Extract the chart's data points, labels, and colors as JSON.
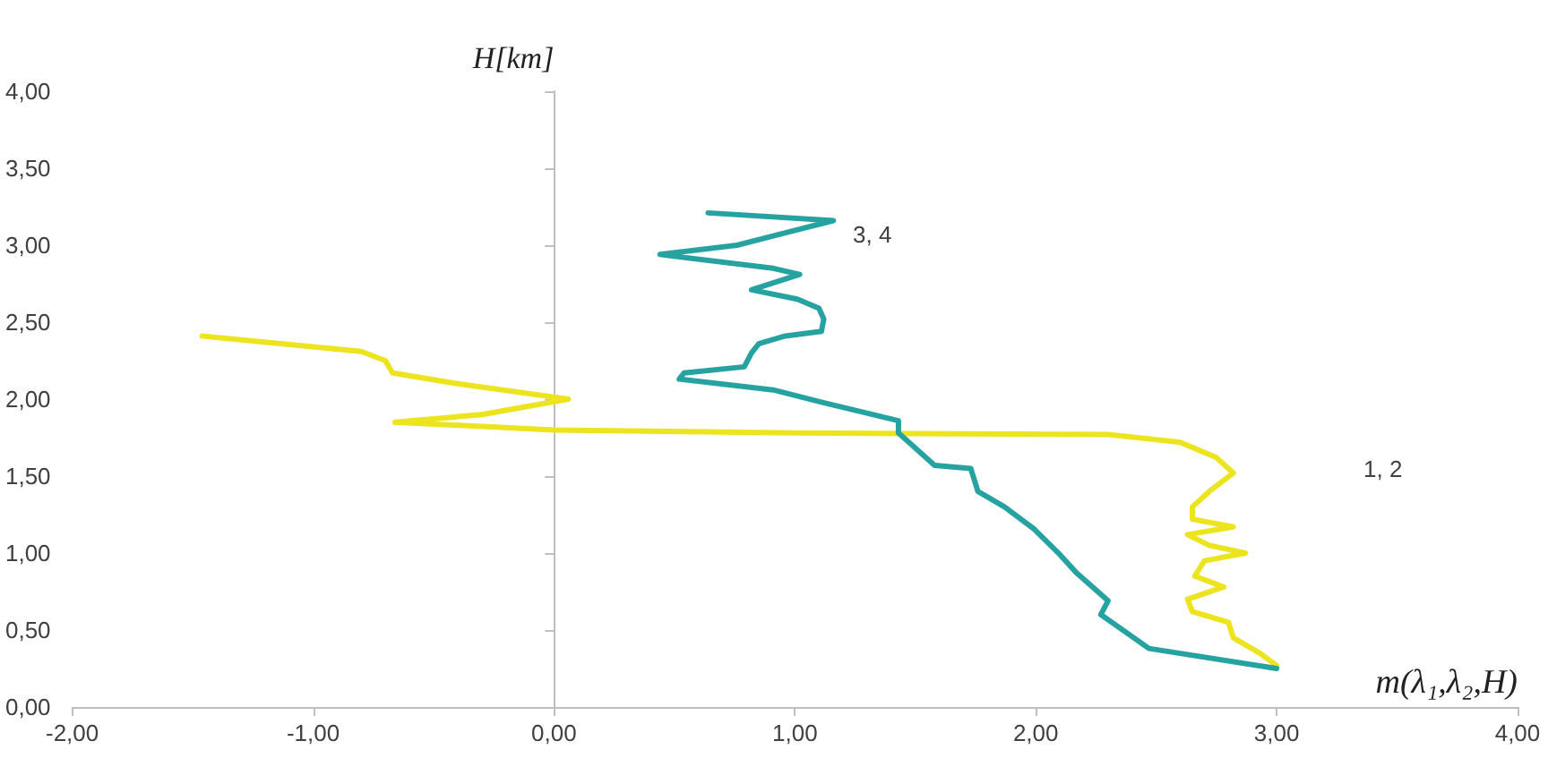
{
  "chart_data": {
    "type": "line",
    "xlabel": "m(λ₁,λ₂,H)",
    "ylabel": "H[km]",
    "xlim": [
      -2,
      4
    ],
    "xticks": [
      {
        "value": -2,
        "label": "-2,00"
      },
      {
        "value": -1,
        "label": "-1,00"
      },
      {
        "value": 0,
        "label": "0,00"
      },
      {
        "value": 1,
        "label": "1,00"
      },
      {
        "value": 2,
        "label": "2,00"
      },
      {
        "value": 3,
        "label": "3,00"
      },
      {
        "value": 4,
        "label": "4,00"
      }
    ],
    "ylim": [
      0,
      4
    ],
    "yticks": [
      {
        "value": 0,
        "label": "0,00"
      },
      {
        "value": 0.5,
        "label": "0,50"
      },
      {
        "value": 1,
        "label": "1,00"
      },
      {
        "value": 1.5,
        "label": "1,50"
      },
      {
        "value": 2,
        "label": "2,00"
      },
      {
        "value": 2.5,
        "label": "2,50"
      },
      {
        "value": 3,
        "label": "3,00"
      },
      {
        "value": 3.5,
        "label": "3,50"
      },
      {
        "value": 4,
        "label": "4,00"
      }
    ],
    "series": [
      {
        "color": "#ece41e",
        "x": [
          3.0,
          2.93,
          2.82,
          2.8,
          2.65,
          2.63,
          2.78,
          2.66,
          2.7,
          2.87,
          2.72,
          2.63,
          2.82,
          2.65,
          2.65,
          2.72,
          2.82,
          2.75,
          2.6,
          2.3,
          1.0,
          0,
          -0.66,
          -0.3,
          0.06,
          -0.4,
          -0.67,
          -0.7,
          -0.8,
          -1.46
        ],
        "values": [
          0.27,
          0.35,
          0.45,
          0.55,
          0.62,
          0.7,
          0.78,
          0.85,
          0.95,
          1.0,
          1.05,
          1.12,
          1.17,
          1.22,
          1.3,
          1.4,
          1.52,
          1.62,
          1.72,
          1.77,
          1.78,
          1.8,
          1.85,
          1.9,
          2.0,
          2.1,
          2.17,
          2.25,
          2.31,
          2.41
        ]
      },
      {
        "color": "#26a3a0",
        "x": [
          3.0,
          2.47,
          2.27,
          2.3,
          2.17,
          2.1,
          1.99,
          1.87,
          1.76,
          1.73,
          1.58,
          1.43,
          1.43,
          1.11,
          0.91,
          0.52,
          0.54,
          0.79,
          0.82,
          0.85,
          0.96,
          1.11,
          1.12,
          1.1,
          1.01,
          0.82,
          1.02,
          0.91,
          0.44,
          0.76,
          0.91,
          1.16,
          0.64
        ],
        "values": [
          0.25,
          0.38,
          0.6,
          0.69,
          0.87,
          0.99,
          1.16,
          1.3,
          1.4,
          1.55,
          1.57,
          1.78,
          1.86,
          1.98,
          2.06,
          2.13,
          2.17,
          2.21,
          2.3,
          2.36,
          2.41,
          2.44,
          2.52,
          2.59,
          2.65,
          2.71,
          2.81,
          2.85,
          2.94,
          3.0,
          3.06,
          3.16,
          3.21
        ]
      }
    ],
    "annotations": [
      "1, 2",
      "3, 4"
    ],
    "marker": "none",
    "line_style": "solid"
  }
}
